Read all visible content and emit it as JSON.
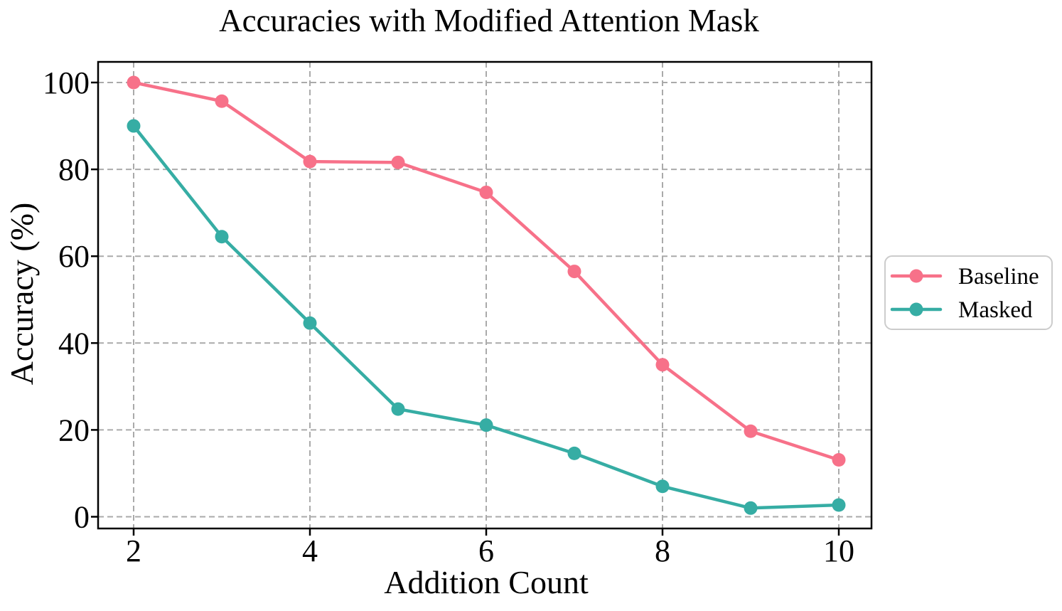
{
  "chart_data": {
    "type": "line",
    "title": "Accuracies with Modified Attention Mask",
    "xlabel": "Addition Count",
    "ylabel": "Accuracy (%)",
    "x": [
      2,
      3,
      4,
      5,
      6,
      7,
      8,
      9,
      10
    ],
    "series": [
      {
        "name": "Baseline",
        "color": "#F77189",
        "marker": "circle",
        "values": [
          100.0,
          95.7,
          81.8,
          81.6,
          74.7,
          56.5,
          35.0,
          19.7,
          13.1
        ]
      },
      {
        "name": "Masked",
        "color": "#36ADA4",
        "marker": "circle",
        "values": [
          90.0,
          64.5,
          44.6,
          24.8,
          21.1,
          14.6,
          7.0,
          2.0,
          2.7
        ]
      }
    ],
    "xticks": [
      2,
      4,
      6,
      8,
      10
    ],
    "yticks": [
      0,
      20,
      40,
      60,
      80,
      100
    ],
    "xlim": [
      1.6,
      10.37
    ],
    "ylim": [
      -2.7,
      104.8
    ],
    "grid": {
      "visible": true,
      "style": "dashed",
      "color": "#AAAAAA"
    },
    "legend": {
      "position": "outside-right",
      "entries": [
        "Baseline",
        "Masked"
      ]
    }
  }
}
